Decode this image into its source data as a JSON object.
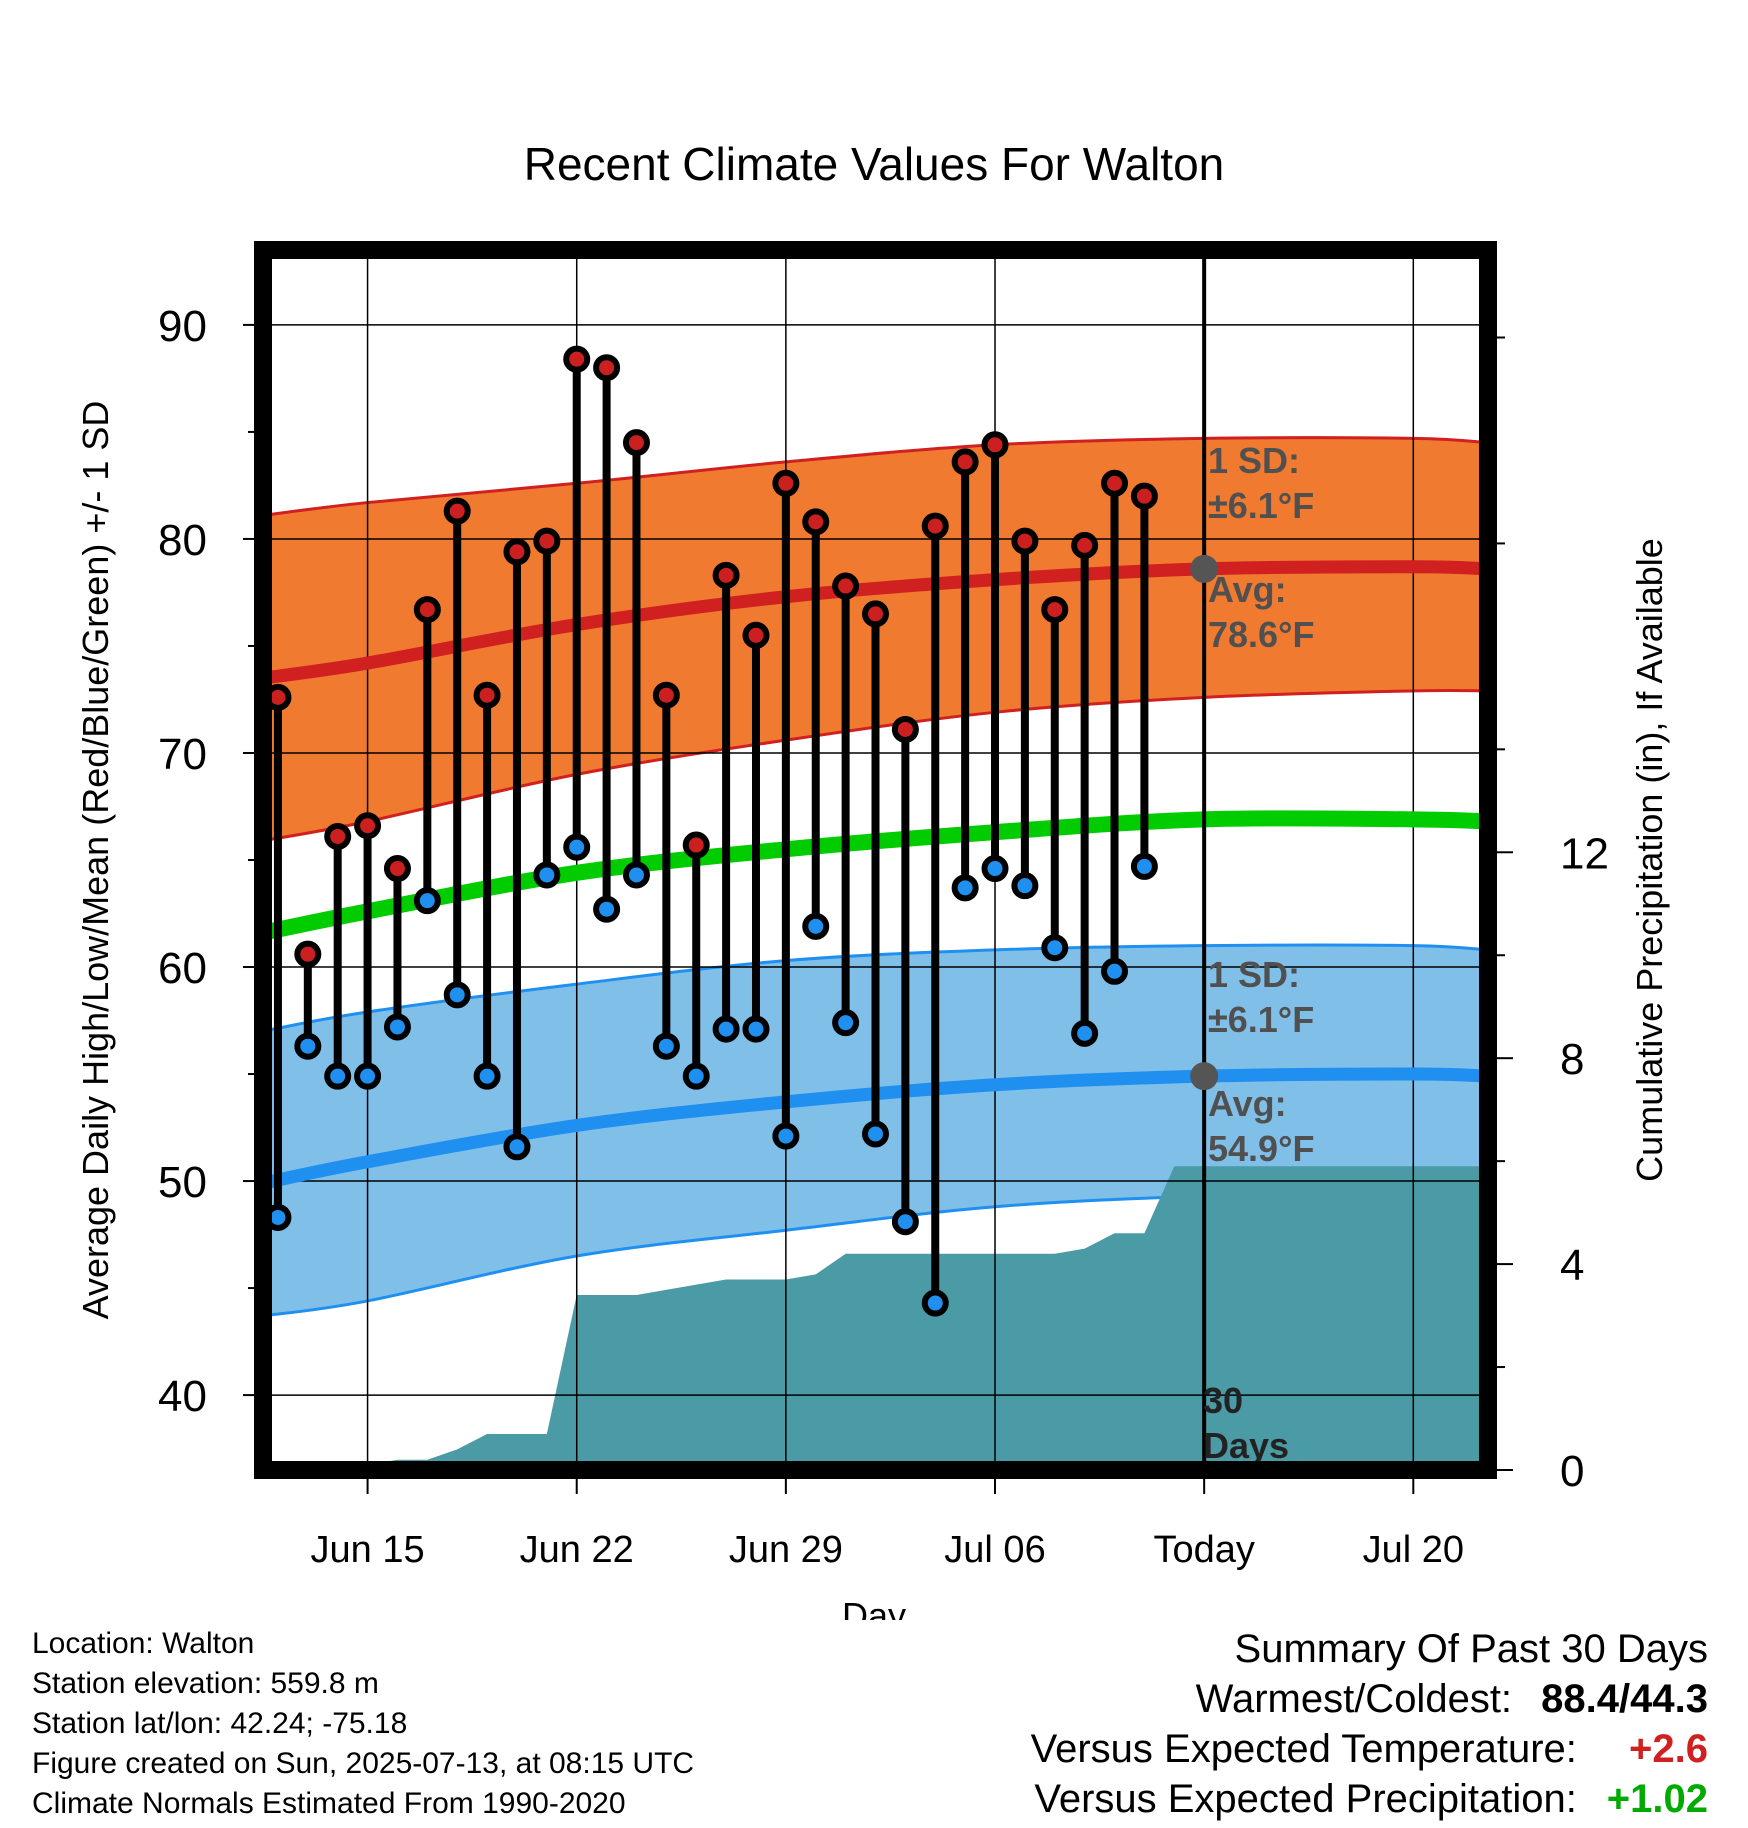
{
  "title": "Recent Climate Values For Walton",
  "colors": {
    "high_band": "#f07a30",
    "high_line": "#d02020",
    "low_band": "#80c0e8",
    "low_line": "#2090f0",
    "mean_line": "#00cc00",
    "precip": "#4a9ba6",
    "high_dot": "#cc2020",
    "low_dot": "#2090f0",
    "today_dot": "#555555",
    "annot": "#505050"
  },
  "chart_data": {
    "type": "line",
    "xlabel": "Day",
    "ylabel": "Average Daily High/Low/Mean (Red/Blue/Green) +/- 1 SD",
    "ylabel_right": "Cumulative Precipitation (in), If Available",
    "ylim": [
      36.5,
      93.5
    ],
    "y_ticks": [
      40,
      50,
      60,
      70,
      80,
      90
    ],
    "y2lim": [
      0,
      23.7
    ],
    "y2_ticks": [
      0,
      4,
      8,
      12
    ],
    "xlim": [
      "2025-06-11 12:00",
      "2025-07-22 12:00"
    ],
    "x_ticks": [
      {
        "date": "2025-06-15",
        "label": "Jun 15"
      },
      {
        "date": "2025-06-22",
        "label": "Jun 22"
      },
      {
        "date": "2025-06-29",
        "label": "Jun 29"
      },
      {
        "date": "2025-07-06",
        "label": "Jul 06"
      },
      {
        "date": "2025-07-13",
        "label": "Today"
      },
      {
        "date": "2025-07-20",
        "label": "Jul 20"
      }
    ],
    "grid": true,
    "today": "2025-07-13",
    "normals": {
      "dates": [
        "2025-06-11 12:00",
        "2025-06-15",
        "2025-06-22",
        "2025-06-29",
        "2025-07-06",
        "2025-07-13",
        "2025-07-20",
        "2025-07-22 12:00"
      ],
      "high_mean": [
        73.5,
        74.2,
        76.0,
        77.3,
        78.1,
        78.6,
        78.7,
        78.6
      ],
      "high_upper": [
        81.1,
        81.7,
        82.6,
        83.6,
        84.4,
        84.7,
        84.7,
        84.5
      ],
      "high_lower": [
        65.9,
        66.8,
        69.0,
        70.6,
        71.9,
        72.6,
        72.9,
        72.9
      ],
      "mean": [
        61.6,
        62.6,
        64.4,
        65.5,
        66.3,
        66.9,
        66.9,
        66.8
      ],
      "low_mean": [
        49.9,
        50.9,
        52.6,
        53.7,
        54.5,
        54.9,
        55.0,
        54.9
      ],
      "low_upper": [
        57.0,
        57.9,
        59.2,
        60.3,
        60.8,
        61.0,
        61.0,
        60.8
      ],
      "low_lower": [
        43.7,
        44.4,
        46.5,
        47.7,
        48.8,
        49.3,
        49.5,
        49.5
      ]
    },
    "series": [
      {
        "name": "High",
        "dates": [
          "2025-06-12",
          "2025-06-13",
          "2025-06-14",
          "2025-06-15",
          "2025-06-16",
          "2025-06-17",
          "2025-06-18",
          "2025-06-19",
          "2025-06-20",
          "2025-06-21",
          "2025-06-22",
          "2025-06-23",
          "2025-06-24",
          "2025-06-25",
          "2025-06-26",
          "2025-06-27",
          "2025-06-28",
          "2025-06-29",
          "2025-06-30",
          "2025-07-01",
          "2025-07-02",
          "2025-07-03",
          "2025-07-04",
          "2025-07-05",
          "2025-07-06",
          "2025-07-07",
          "2025-07-08",
          "2025-07-09",
          "2025-07-10",
          "2025-07-11",
          "2025-07-12"
        ],
        "values": [
          72.6,
          60.6,
          66.1,
          66.6,
          64.6,
          76.7,
          81.3,
          72.7,
          79.4,
          79.9,
          88.4,
          88.0,
          84.5,
          72.7,
          65.7,
          78.3,
          75.5,
          82.6,
          80.8,
          77.8,
          76.5,
          71.1,
          80.6,
          83.6,
          84.4,
          79.9,
          76.7,
          79.7,
          82.6,
          82.0,
          null
        ]
      },
      {
        "name": "Low",
        "dates": [
          "2025-06-12",
          "2025-06-13",
          "2025-06-14",
          "2025-06-15",
          "2025-06-16",
          "2025-06-17",
          "2025-06-18",
          "2025-06-19",
          "2025-06-20",
          "2025-06-21",
          "2025-06-22",
          "2025-06-23",
          "2025-06-24",
          "2025-06-25",
          "2025-06-26",
          "2025-06-27",
          "2025-06-28",
          "2025-06-29",
          "2025-06-30",
          "2025-07-01",
          "2025-07-02",
          "2025-07-03",
          "2025-07-04",
          "2025-07-05",
          "2025-07-06",
          "2025-07-07",
          "2025-07-08",
          "2025-07-09",
          "2025-07-10",
          "2025-07-11",
          "2025-07-12"
        ],
        "values": [
          48.3,
          56.3,
          54.9,
          54.9,
          57.2,
          63.1,
          58.7,
          54.9,
          51.6,
          64.3,
          65.6,
          62.7,
          64.3,
          56.3,
          54.9,
          57.1,
          57.1,
          52.1,
          61.9,
          57.4,
          52.2,
          48.1,
          44.3,
          63.7,
          64.6,
          63.8,
          60.9,
          56.9,
          59.8,
          64.7,
          null
        ]
      },
      {
        "name": "Cumulative Precipitation",
        "dates": [
          "2025-06-11 12:00",
          "2025-06-14",
          "2025-06-15",
          "2025-06-16",
          "2025-06-17",
          "2025-06-18",
          "2025-06-19",
          "2025-06-20",
          "2025-06-21",
          "2025-06-22",
          "2025-06-24",
          "2025-06-26",
          "2025-06-27",
          "2025-06-29",
          "2025-06-30",
          "2025-07-01",
          "2025-07-02",
          "2025-07-05",
          "2025-07-07",
          "2025-07-08",
          "2025-07-09",
          "2025-07-10",
          "2025-07-11",
          "2025-07-12",
          "2025-07-13",
          "2025-07-22 12:00"
        ],
        "values": [
          0,
          0,
          0.1,
          0.2,
          0.2,
          0.4,
          0.7,
          0.7,
          0.7,
          3.4,
          3.4,
          3.6,
          3.7,
          3.7,
          3.8,
          4.2,
          4.2,
          4.2,
          4.2,
          4.2,
          4.3,
          4.6,
          4.6,
          5.9,
          5.9,
          5.9
        ]
      }
    ],
    "annotations": {
      "high_sd_label": "1 SD:",
      "high_sd_value": "±6.1°F",
      "high_avg_label": "Avg:",
      "high_avg_value": "78.6°F",
      "low_sd_label": "1 SD:",
      "low_sd_value": "±6.1°F",
      "low_avg_label": "Avg:",
      "low_avg_value": "54.9°F",
      "days_value": "30",
      "days_label": "Days"
    }
  },
  "footer": {
    "location": "Location: Walton",
    "elevation": "Station elevation: 559.8 m",
    "latlon": "Station lat/lon: 42.24; -75.18",
    "created": "Figure created on Sun, 2025-07-13, at 08:15 UTC",
    "normals": "Climate Normals Estimated From 1990-2020"
  },
  "summary": {
    "title": "Summary Of Past 30 Days",
    "warmest_label": "Warmest/Coldest:",
    "warmest_value": "88.4/44.3",
    "temp_label": "Versus Expected Temperature:",
    "temp_value": "+2.6",
    "temp_color": "#d02020",
    "precip_label": "Versus Expected Precipitation:",
    "precip_value": "+1.02",
    "precip_color": "#00aa00"
  }
}
